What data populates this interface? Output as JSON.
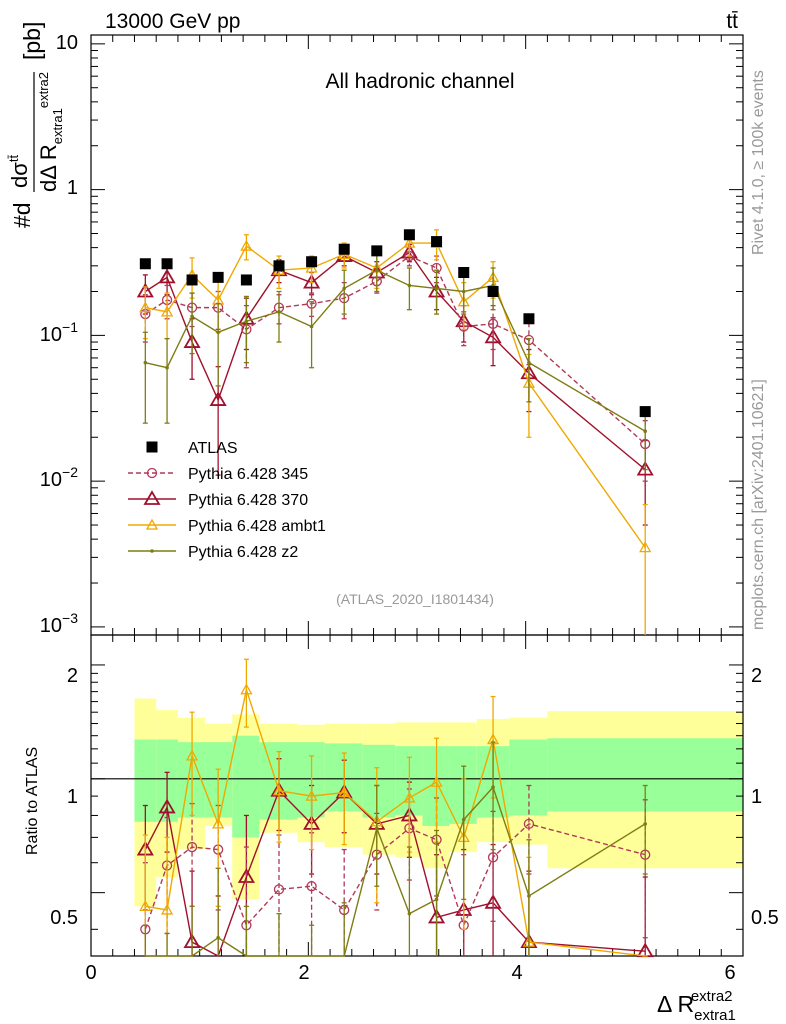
{
  "header": {
    "energy_label": "13000 GeV pp",
    "process_label": "tt̄",
    "channel_label": "All hadronic channel",
    "analysis_id": "(ATLAS_2020_I1801434)",
    "rivet_label": "Rivet 4.1.0, ≥ 100k events",
    "mcplots_label": "mcplots.cern.ch [arXiv:2401.10621]"
  },
  "axes": {
    "ylabel_main": "#dσ^tt̄ / dΔR^extra2_extra1 [pb]",
    "ylabel_ratio": "Ratio to ATLAS",
    "xlabel": "Δ R^extra2_extra1",
    "xlabel_base": "Δ R",
    "xlabel_sup": "extra2",
    "xlabel_sub": "extra1",
    "main_ticks": [
      "10^-3",
      "10^-2",
      "10^-1",
      "1",
      "10"
    ],
    "ratio_ticks": [
      "0.5",
      "1",
      "2"
    ],
    "x_ticks": [
      "0",
      "2",
      "4",
      "6"
    ]
  },
  "colors": {
    "data": "#000000",
    "p345": "#b03a58",
    "p370": "#a0102c",
    "ambt1": "#f0a800",
    "z2": "#7d7d14",
    "band_inner": "#99ff99",
    "band_outer": "#ffff99"
  },
  "chart_data": {
    "type": "scatter",
    "title": "All hadronic channel",
    "xlabel": "Δ R^extra2_extra1",
    "ylabel": "#dσ^tt̄/dΔR^extra2_extra1 [pb]",
    "xlim": [
      0,
      6
    ],
    "ylim_main": [
      0.00088,
      11.5
    ],
    "ylim_ratio": [
      0.34,
      2.4
    ],
    "x": [
      0.5,
      0.7,
      0.93,
      1.17,
      1.43,
      1.73,
      2.03,
      2.33,
      2.63,
      2.93,
      3.18,
      3.43,
      3.7,
      4.03,
      5.1
    ],
    "bins": [
      [
        0.4,
        0.6
      ],
      [
        0.6,
        0.8
      ],
      [
        0.8,
        1.05
      ],
      [
        1.05,
        1.3
      ],
      [
        1.3,
        1.55
      ],
      [
        1.55,
        1.9
      ],
      [
        1.9,
        2.15
      ],
      [
        2.15,
        2.5
      ],
      [
        2.5,
        2.8
      ],
      [
        2.8,
        3.05
      ],
      [
        3.05,
        3.3
      ],
      [
        3.3,
        3.55
      ],
      [
        3.55,
        3.85
      ],
      [
        3.85,
        4.2
      ],
      [
        4.2,
        6.0
      ]
    ],
    "band_inner": [
      [
        0.77,
        1.27
      ],
      [
        0.77,
        1.27
      ],
      [
        0.79,
        1.25
      ],
      [
        0.79,
        1.25
      ],
      [
        0.7,
        1.3
      ],
      [
        0.78,
        1.25
      ],
      [
        0.79,
        1.25
      ],
      [
        0.82,
        1.24
      ],
      [
        0.79,
        1.23
      ],
      [
        0.8,
        1.22
      ],
      [
        0.75,
        1.22
      ],
      [
        0.76,
        1.22
      ],
      [
        0.79,
        1.22
      ],
      [
        0.8,
        1.27
      ],
      [
        0.82,
        1.28
      ]
    ],
    "band_outer": [
      [
        0.46,
        1.63
      ],
      [
        0.55,
        1.52
      ],
      [
        0.65,
        1.45
      ],
      [
        0.75,
        1.4
      ],
      [
        0.48,
        1.48
      ],
      [
        0.72,
        1.4
      ],
      [
        0.68,
        1.39
      ],
      [
        0.66,
        1.4
      ],
      [
        0.63,
        1.4
      ],
      [
        0.62,
        1.41
      ],
      [
        0.58,
        1.41
      ],
      [
        0.64,
        1.41
      ],
      [
        0.68,
        1.44
      ],
      [
        0.67,
        1.45
      ],
      [
        0.58,
        1.51
      ]
    ],
    "series": [
      {
        "name": "ATLAS",
        "key": "data",
        "style": "square",
        "dashed": false,
        "values": [
          0.31,
          0.31,
          0.24,
          0.25,
          0.24,
          0.3,
          0.32,
          0.39,
          0.38,
          0.49,
          0.44,
          0.27,
          0.2,
          0.13,
          0.03
        ]
      },
      {
        "name": "Pythia 6.428 345",
        "key": "p345",
        "style": "circle",
        "dashed": true,
        "values": [
          0.14,
          0.175,
          0.155,
          0.155,
          0.11,
          0.155,
          0.165,
          0.18,
          0.235,
          0.35,
          0.29,
          0.115,
          0.12,
          0.093,
          0.018
        ],
        "errors": [
          0.05,
          0.045,
          0.04,
          0.045,
          0.05,
          0.035,
          0.03,
          0.05,
          0.04,
          0.05,
          0.06,
          0.03,
          0.04,
          0.03,
          0.008
        ],
        "ratio": [
          0.4,
          0.59,
          0.66,
          0.65,
          0.41,
          0.51,
          0.52,
          0.45,
          0.63,
          0.74,
          0.69,
          0.41,
          0.62,
          0.76,
          0.63
        ],
        "ratio_errors": [
          0.2,
          0.2,
          0.2,
          0.2,
          0.25,
          0.2,
          0.2,
          0.2,
          0.18,
          0.2,
          0.2,
          0.22,
          0.2,
          0.2,
          0.25
        ]
      },
      {
        "name": "Pythia 6.428 370",
        "key": "p370",
        "style": "triangle",
        "dashed": false,
        "values": [
          0.2,
          0.25,
          0.09,
          0.036,
          0.13,
          0.28,
          0.23,
          0.35,
          0.27,
          0.37,
          0.2,
          0.125,
          0.097,
          0.055,
          0.012
        ],
        "errors": [
          0.06,
          0.06,
          0.04,
          0.025,
          0.05,
          0.05,
          0.04,
          0.05,
          0.05,
          0.05,
          0.05,
          0.035,
          0.035,
          0.025,
          0.007
        ],
        "ratio": [
          0.65,
          0.84,
          0.37,
          0.24,
          0.55,
          0.93,
          0.76,
          0.92,
          0.76,
          0.8,
          0.43,
          0.45,
          0.47,
          0.37,
          0.35
        ],
        "ratio_errors": [
          0.2,
          0.2,
          0.2,
          0.25,
          0.25,
          0.2,
          0.2,
          0.2,
          0.2,
          0.18,
          0.2,
          0.2,
          0.2,
          0.2,
          0.2
        ]
      },
      {
        "name": "Pythia 6.428 ambt1",
        "key": "ambt1",
        "style": "triangle-open",
        "dashed": false,
        "values": [
          0.155,
          0.145,
          0.26,
          0.175,
          0.41,
          0.28,
          0.29,
          0.36,
          0.29,
          0.43,
          0.43,
          0.17,
          0.25,
          0.047,
          0.0035
        ],
        "errors": [
          0.06,
          0.05,
          0.08,
          0.07,
          0.08,
          0.07,
          0.06,
          0.07,
          0.08,
          0.08,
          0.1,
          0.06,
          0.07,
          0.027,
          0.0034
        ],
        "ratio": [
          0.46,
          0.45,
          1.15,
          0.76,
          1.72,
          0.93,
          0.9,
          0.92,
          0.77,
          0.89,
          0.98,
          0.7,
          1.27,
          0.37,
          0.11
        ],
        "ratio_errors": [
          0.25,
          0.25,
          0.35,
          0.3,
          0.35,
          0.25,
          0.25,
          0.25,
          0.3,
          0.25,
          0.3,
          0.3,
          0.38,
          0.25,
          0.1
        ]
      },
      {
        "name": "Pythia 6.428 z2",
        "key": "z2",
        "style": "dot",
        "dashed": false,
        "values": [
          0.065,
          0.06,
          0.135,
          0.105,
          0.125,
          0.145,
          0.115,
          0.21,
          0.28,
          0.22,
          0.21,
          0.2,
          0.22,
          0.065,
          0.022
        ],
        "errors": [
          0.04,
          0.035,
          0.06,
          0.06,
          0.06,
          0.055,
          0.055,
          0.07,
          0.08,
          0.07,
          0.07,
          0.06,
          0.07,
          0.03,
          0.01
        ],
        "ratio": [
          0.21,
          0.19,
          0.26,
          0.38,
          0.26,
          0.24,
          0.21,
          0.25,
          0.74,
          0.44,
          0.48,
          0.78,
          0.95,
          0.49,
          0.76
        ],
        "ratio_errors": [
          0.2,
          0.2,
          0.2,
          0.2,
          0.2,
          0.2,
          0.2,
          0.22,
          0.22,
          0.22,
          0.25,
          0.3,
          0.3,
          0.2,
          0.2
        ]
      }
    ]
  }
}
